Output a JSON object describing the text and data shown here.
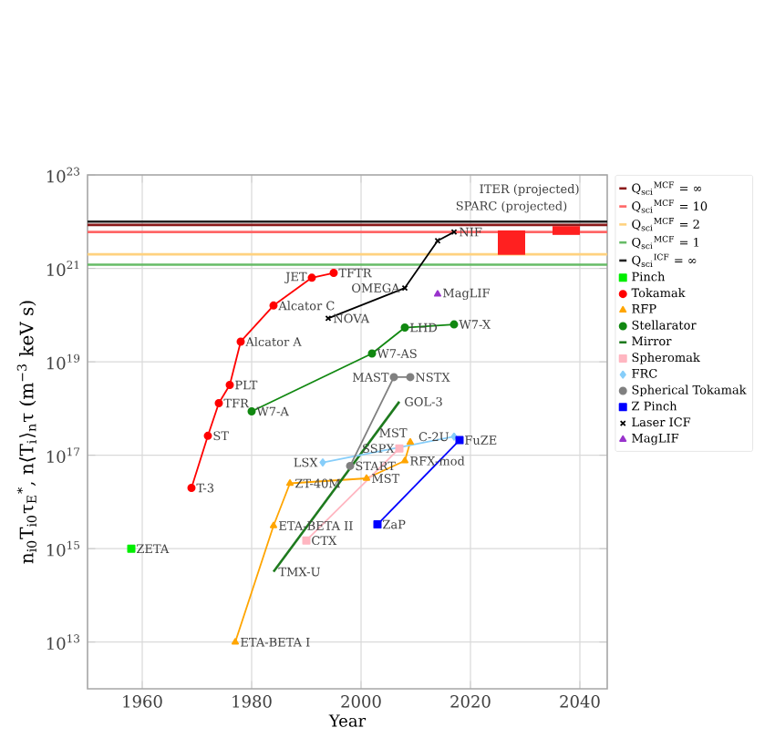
{
  "chart_data": {
    "type": "line",
    "xlabel": "Year",
    "ylabel": "n$_{i0}$T$_{i0}$τ$_{E}$$^{*}$, n⟨T$_{i}$⟩$_{n}$τ (m$^{−3}$ keV s)",
    "xlim": [
      1950,
      2045
    ],
    "ylim": [
      1000000000000.0,
      1e+23
    ],
    "log": "y",
    "grid": true,
    "legend": "right",
    "xticks": [
      1960,
      1980,
      2000,
      2020,
      2040
    ],
    "yticks": [
      {
        "value": 10000000000000.0,
        "label": "10$^{13}$"
      },
      {
        "value": 1000000000000000.0,
        "label": "10$^{15}$"
      },
      {
        "value": 1e+17,
        "label": "10$^{17}$"
      },
      {
        "value": 1e+19,
        "label": "10$^{19}$"
      },
      {
        "value": 1e+21,
        "label": "10$^{21}$"
      },
      {
        "value": 1e+23,
        "label": "10$^{23}$"
      }
    ],
    "series": [
      {
        "name": "Q$_{sci}$$^{MCF}$ = ∞",
        "color": "#8b1a1a",
        "marker": "none",
        "x": [
          1950,
          2045
        ],
        "values": [
          8.5e+21,
          8.5e+21
        ]
      },
      {
        "name": "Q$_{sci}$$^{MCF}$ = 10",
        "color": "#ff6666",
        "marker": "none",
        "x": [
          1950,
          2045
        ],
        "values": [
          6e+21,
          6e+21
        ]
      },
      {
        "name": "Q$_{sci}$$^{MCF}$ = 2",
        "color": "#ffd27f",
        "marker": "none",
        "x": [
          1950,
          2045
        ],
        "values": [
          2e+21,
          2e+21
        ]
      },
      {
        "name": "Q$_{sci}$$^{MCF}$ = 1",
        "color": "#66bb66",
        "marker": "none",
        "x": [
          1950,
          2045
        ],
        "values": [
          1.2e+21,
          1.2e+21
        ]
      },
      {
        "name": "Q$_{sci}$$^{ICF}$ = ∞",
        "color": "#222222",
        "marker": "none",
        "x": [
          1950,
          2045
        ],
        "values": [
          1e+22,
          1e+22
        ]
      },
      {
        "name": "Pinch",
        "color": "#00ee00",
        "marker": "square",
        "x": [
          1958
        ],
        "values": [
          1000000000000000.0
        ]
      },
      {
        "name": "Tokamak",
        "color": "#ff0000",
        "marker": "circle",
        "x": [
          1969,
          1972,
          1974,
          1976,
          1978,
          1984,
          1991,
          1995
        ],
        "values": [
          2e+16,
          2.6e+17,
          1.3e+18,
          3.2e+18,
          2.7e+19,
          1.6e+20,
          6.3e+20,
          8e+20
        ]
      },
      {
        "name": "RFP",
        "color": "#ffa500",
        "marker": "triangle",
        "x": [
          1977,
          1984,
          1987,
          2001,
          2008,
          2009
        ],
        "values": [
          10000000000000.0,
          3100000000000000.0,
          2.5e+16,
          3.2e+16,
          7.6e+16,
          1.9e+17
        ]
      },
      {
        "name": "Stellarator",
        "color": "#118811",
        "marker": "circle",
        "x": [
          1980,
          2002,
          2008,
          2017
        ],
        "values": [
          8.7e+17,
          1.5e+19,
          5.4e+19,
          6.3e+19
        ]
      },
      {
        "name": "Mirror",
        "color": "#1e7a1e",
        "marker": "none",
        "x": [
          1984,
          2007
        ],
        "values": [
          320000000000000.0,
          1.4e+18
        ]
      },
      {
        "name": "Spheromak",
        "color": "#ffb6c1",
        "marker": "square",
        "x": [
          1990,
          2007
        ],
        "values": [
          1500000000000000.0,
          1.4e+17
        ]
      },
      {
        "name": "FRC",
        "color": "#87cefa",
        "marker": "diamond",
        "x": [
          1993,
          2017
        ],
        "values": [
          7e+16,
          2.5e+17
        ]
      },
      {
        "name": "Spherical Tokamak",
        "color": "#808080",
        "marker": "circle",
        "x": [
          1998,
          2006,
          2009
        ],
        "values": [
          5.9e+16,
          4.7e+18,
          4.7e+18
        ]
      },
      {
        "name": "Z Pinch",
        "color": "#0000ff",
        "marker": "square",
        "x": [
          2003,
          2018
        ],
        "values": [
          3300000000000000.0,
          2.1e+17
        ]
      },
      {
        "name": "Laser ICF",
        "color": "#000000",
        "marker": "cross",
        "x": [
          1994,
          2008,
          2014,
          2017
        ],
        "values": [
          8.5e+19,
          3.8e+20,
          3.9e+21,
          6e+21
        ]
      },
      {
        "name": "MagLIF",
        "color": "#9933cc",
        "marker": "triangle",
        "x": [
          2014
        ],
        "values": [
          2.8e+20
        ]
      },
      {
        "type": "bar",
        "color": "#ff2020",
        "x": [
          2027.5,
          2037.5
        ],
        "base": [
          1.95e+21,
          5.2e+21
        ],
        "values": [
          4.55e+21,
          2.8e+21
        ]
      }
    ],
    "annotations": [
      {
        "text": "ZETA",
        "x": 1958,
        "y": 1000000000000000.0
      },
      {
        "text": "T-3",
        "x": 1969,
        "y": 2e+16
      },
      {
        "text": "ST",
        "x": 1972,
        "y": 2.6e+17
      },
      {
        "text": "TFR",
        "x": 1974,
        "y": 1.3e+18
      },
      {
        "text": "PLT",
        "x": 1976,
        "y": 3.2e+18
      },
      {
        "text": "Alcator A",
        "x": 1978,
        "y": 2.7e+19
      },
      {
        "text": "Alcator C",
        "x": 1984,
        "y": 1.6e+20
      },
      {
        "text": "JET",
        "x": 1991,
        "y": 6.3e+20
      },
      {
        "text": "TFTR",
        "x": 1995,
        "y": 8e+20
      },
      {
        "text": "NOVA",
        "x": 1994,
        "y": 8.5e+19
      },
      {
        "text": "OMEGA",
        "x": 2008,
        "y": 3.8e+20
      },
      {
        "text": "NIF",
        "x": 2017,
        "y": 6e+21
      },
      {
        "text": "MagLIF",
        "x": 2014,
        "y": 2.8e+20
      },
      {
        "text": "W7-A",
        "x": 1980,
        "y": 8.7e+17
      },
      {
        "text": "W7-AS",
        "x": 2002,
        "y": 1.5e+19
      },
      {
        "text": "LHD",
        "x": 2008,
        "y": 5.4e+19
      },
      {
        "text": "W7-X",
        "x": 2017,
        "y": 6.3e+19
      },
      {
        "text": "TMX-U",
        "x": 1984,
        "y": 320000000000000.0
      },
      {
        "text": "GOL-3",
        "x": 2007,
        "y": 1.4e+18
      },
      {
        "text": "MAST",
        "x": 2006,
        "y": 4.7e+18
      },
      {
        "text": "NSTX",
        "x": 2009,
        "y": 4.7e+18
      },
      {
        "text": "START",
        "x": 1998,
        "y": 5.9e+16
      },
      {
        "text": "LSX",
        "x": 1993,
        "y": 7e+16
      },
      {
        "text": "C-2U",
        "x": 2017,
        "y": 2.5e+17
      },
      {
        "text": "CTX",
        "x": 1990,
        "y": 1500000000000000.0
      },
      {
        "text": "SSPX",
        "x": 2007,
        "y": 1.4e+17
      },
      {
        "text": "ETA-BETA I",
        "x": 1977,
        "y": 10000000000000.0
      },
      {
        "text": "ETA-BETA II",
        "x": 1984,
        "y": 3100000000000000.0
      },
      {
        "text": "ZT-40M",
        "x": 1987,
        "y": 2.5e+16
      },
      {
        "text": "MST",
        "x": 2001,
        "y": 3.2e+16
      },
      {
        "text": "RFX-mod",
        "x": 2008,
        "y": 7.6e+16
      },
      {
        "text": "MST",
        "x": 2009,
        "y": 1.9e+17
      },
      {
        "text": "ZaP",
        "x": 2003,
        "y": 3300000000000000.0
      },
      {
        "text": "FuZE",
        "x": 2018,
        "y": 2.1e+17
      },
      {
        "text": "SPARC (projected)",
        "x": 2027.5,
        "y": 6.5e+21
      },
      {
        "text": "ITER (projected)",
        "x": 2037.5,
        "y": 8e+21
      }
    ]
  }
}
